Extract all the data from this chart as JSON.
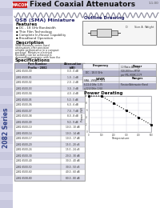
{
  "title": "Fixed Coaxial Attenuators",
  "brand": "MACOM",
  "series_label": "2082 Series",
  "version_label": "1.1.00",
  "subtitle": "QSB (SMA) Miniature",
  "bg_color": "#c8c8dc",
  "page_bg": "#ffffff",
  "sidebar_bg": "#d0d0e4",
  "features": [
    "DC - 18 GHz Bandwidth",
    "Thin Film Technology",
    "Complete In-House Capability",
    "Broadband Operation"
  ],
  "description": "SMA Miniature series fixed attenuators offer precision reliable performance in a compact package. Miniature electrical flexibility can be achieved in demanding programs with from the various factors below. Rugged construction and thermal stability insure high performance in military and space applications.",
  "spec_rows": [
    [
      "2082-6500-00",
      "0.0 - 0 dB"
    ],
    [
      "2082-6500-01",
      "1.0 - 1 dB"
    ],
    [
      "2082-6500-02",
      "2.0 - 2 dB"
    ],
    [
      "2082-6500-03",
      "3.0 - 3 dB"
    ],
    [
      "2082-6500-04",
      "4.0 - 4 dB"
    ],
    [
      "2082-6500-05",
      "5.0 - 5 dB"
    ],
    [
      "2082-6500-06",
      "6.0 - 6 dB"
    ],
    [
      "2082-6500-07",
      "7.0 - 7 dB"
    ],
    [
      "2082-6500-08",
      "8.0 - 8 dB"
    ],
    [
      "2082-6500-09",
      "9.0 - 9 dB"
    ],
    [
      "2082-6500-10",
      "10.0 - 10 dB"
    ],
    [
      "2082-6500-14",
      "10.0 - 14 dB"
    ],
    [
      "2082-6500-17",
      "10.0 - 17 dB"
    ],
    [
      "2082-6500-20",
      "15.0 - 20 dB"
    ],
    [
      "2082-6500-24",
      "15.0 - 24 dB"
    ],
    [
      "2082-6500-30",
      "20.0 - 30 dB"
    ],
    [
      "2082-6500-40",
      "30.0 - 40 dB"
    ],
    [
      "2082-6500-50",
      "30.0 - 50 dB"
    ],
    [
      "2082-6500-60",
      "40.0 - 60 dB"
    ],
    [
      "2082-6508-80",
      "80.0 - 80 dB"
    ]
  ],
  "outline_title": "Outline Drawing",
  "power_title": "Power Derating",
  "power_x": [
    0,
    100,
    200,
    300,
    400,
    500
  ],
  "power_y": [
    10,
    10,
    8,
    6,
    4,
    2
  ],
  "power_xticks": [
    0,
    100,
    200,
    300,
    400,
    500
  ],
  "power_yticks": [
    0,
    2,
    4,
    6,
    8,
    10
  ],
  "power_xlabel": "Temperature",
  "power_ylabel": "Power (W)",
  "header_bg": "#b0b0c8",
  "table_bg": "#ffffff",
  "table_alt": "#dcdce8"
}
